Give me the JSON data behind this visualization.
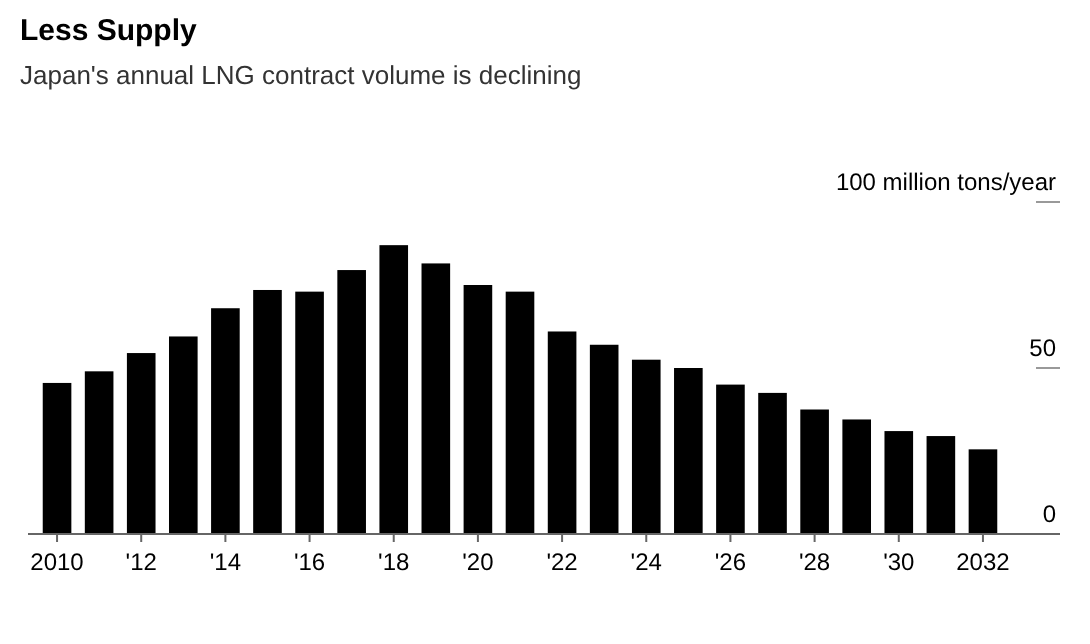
{
  "chart_data": {
    "type": "bar",
    "title": "Less Supply",
    "subtitle": "Japan's annual LNG contract volume is declining",
    "categories": [
      "2010",
      null,
      "'12",
      null,
      "'14",
      null,
      "'16",
      null,
      "'18",
      null,
      "'20",
      null,
      "'22",
      null,
      "'24",
      null,
      "'26",
      null,
      "'28",
      null,
      "'30",
      null,
      "2032"
    ],
    "values": [
      45.5,
      49,
      54.5,
      59.5,
      68,
      73.5,
      73,
      79.5,
      87,
      81.5,
      75,
      73,
      61,
      57,
      52.5,
      50,
      45,
      42.5,
      37.5,
      34.5,
      31,
      29.5,
      25.5
    ],
    "color": "#000000",
    "ylim": [
      0,
      100
    ],
    "yticks": [
      0,
      50,
      {
        "value": 100,
        "label": "100 million tons/year"
      }
    ],
    "grid": false
  }
}
